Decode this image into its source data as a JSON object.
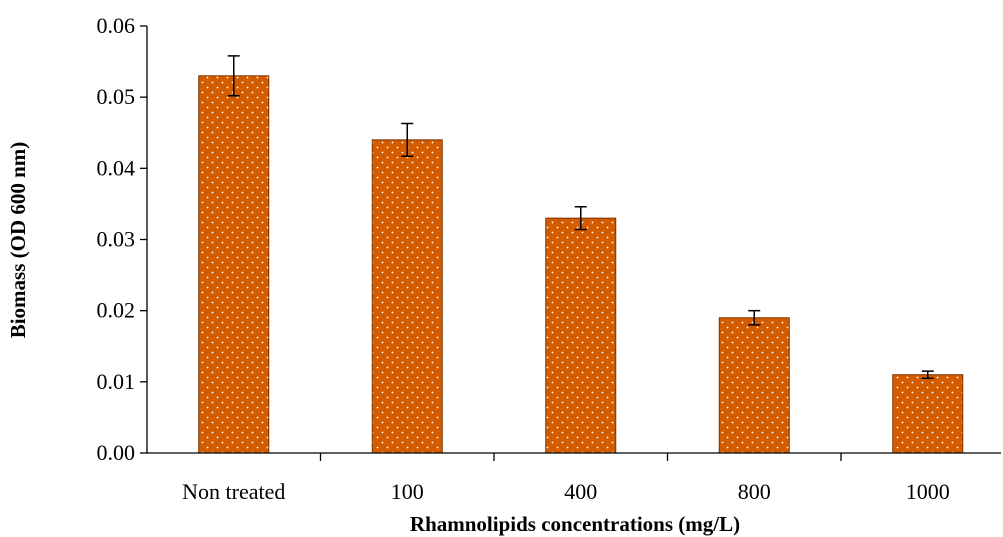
{
  "chart_data": {
    "type": "bar",
    "categories": [
      "Non treated",
      "100",
      "400",
      "800",
      "1000"
    ],
    "values": [
      0.053,
      0.044,
      0.033,
      0.019,
      0.011
    ],
    "error": [
      0.0028,
      0.0023,
      0.0016,
      0.001,
      0.0005
    ],
    "title": "",
    "xlabel": "Rhamnolipids concentrations  (mg/L)",
    "ylabel": "Biomass (OD 600 nm)",
    "ylim": [
      0,
      0.06
    ],
    "yticks": [
      "0.00",
      "0.01",
      "0.02",
      "0.03",
      "0.04",
      "0.05",
      "0.06"
    ],
    "grid": false,
    "legend": "none",
    "bar_color": "#D45C00",
    "pattern_color": "#ffffff"
  }
}
